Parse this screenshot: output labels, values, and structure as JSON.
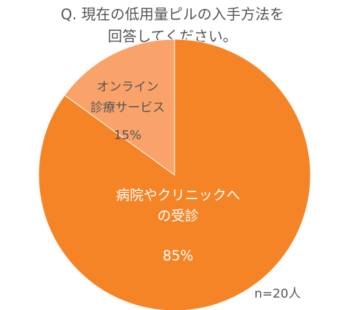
{
  "title": {
    "line1": "Q. 現在の低用量ピルの入手方法を",
    "line2": "回答してください。"
  },
  "note": "n=20人",
  "colors": {
    "major": "#F58426",
    "minor": "#F9A36A",
    "label_light": "#ffffff",
    "label_dark": "#555555"
  },
  "chart_data": {
    "type": "pie",
    "slices": [
      {
        "label_lines": [
          "病院やクリニックへ",
          "の受診"
        ],
        "value": 85,
        "value_label": "85%"
      },
      {
        "label_lines": [
          "オンライン",
          "診療サービス"
        ],
        "value": 15,
        "value_label": "15%"
      }
    ]
  }
}
